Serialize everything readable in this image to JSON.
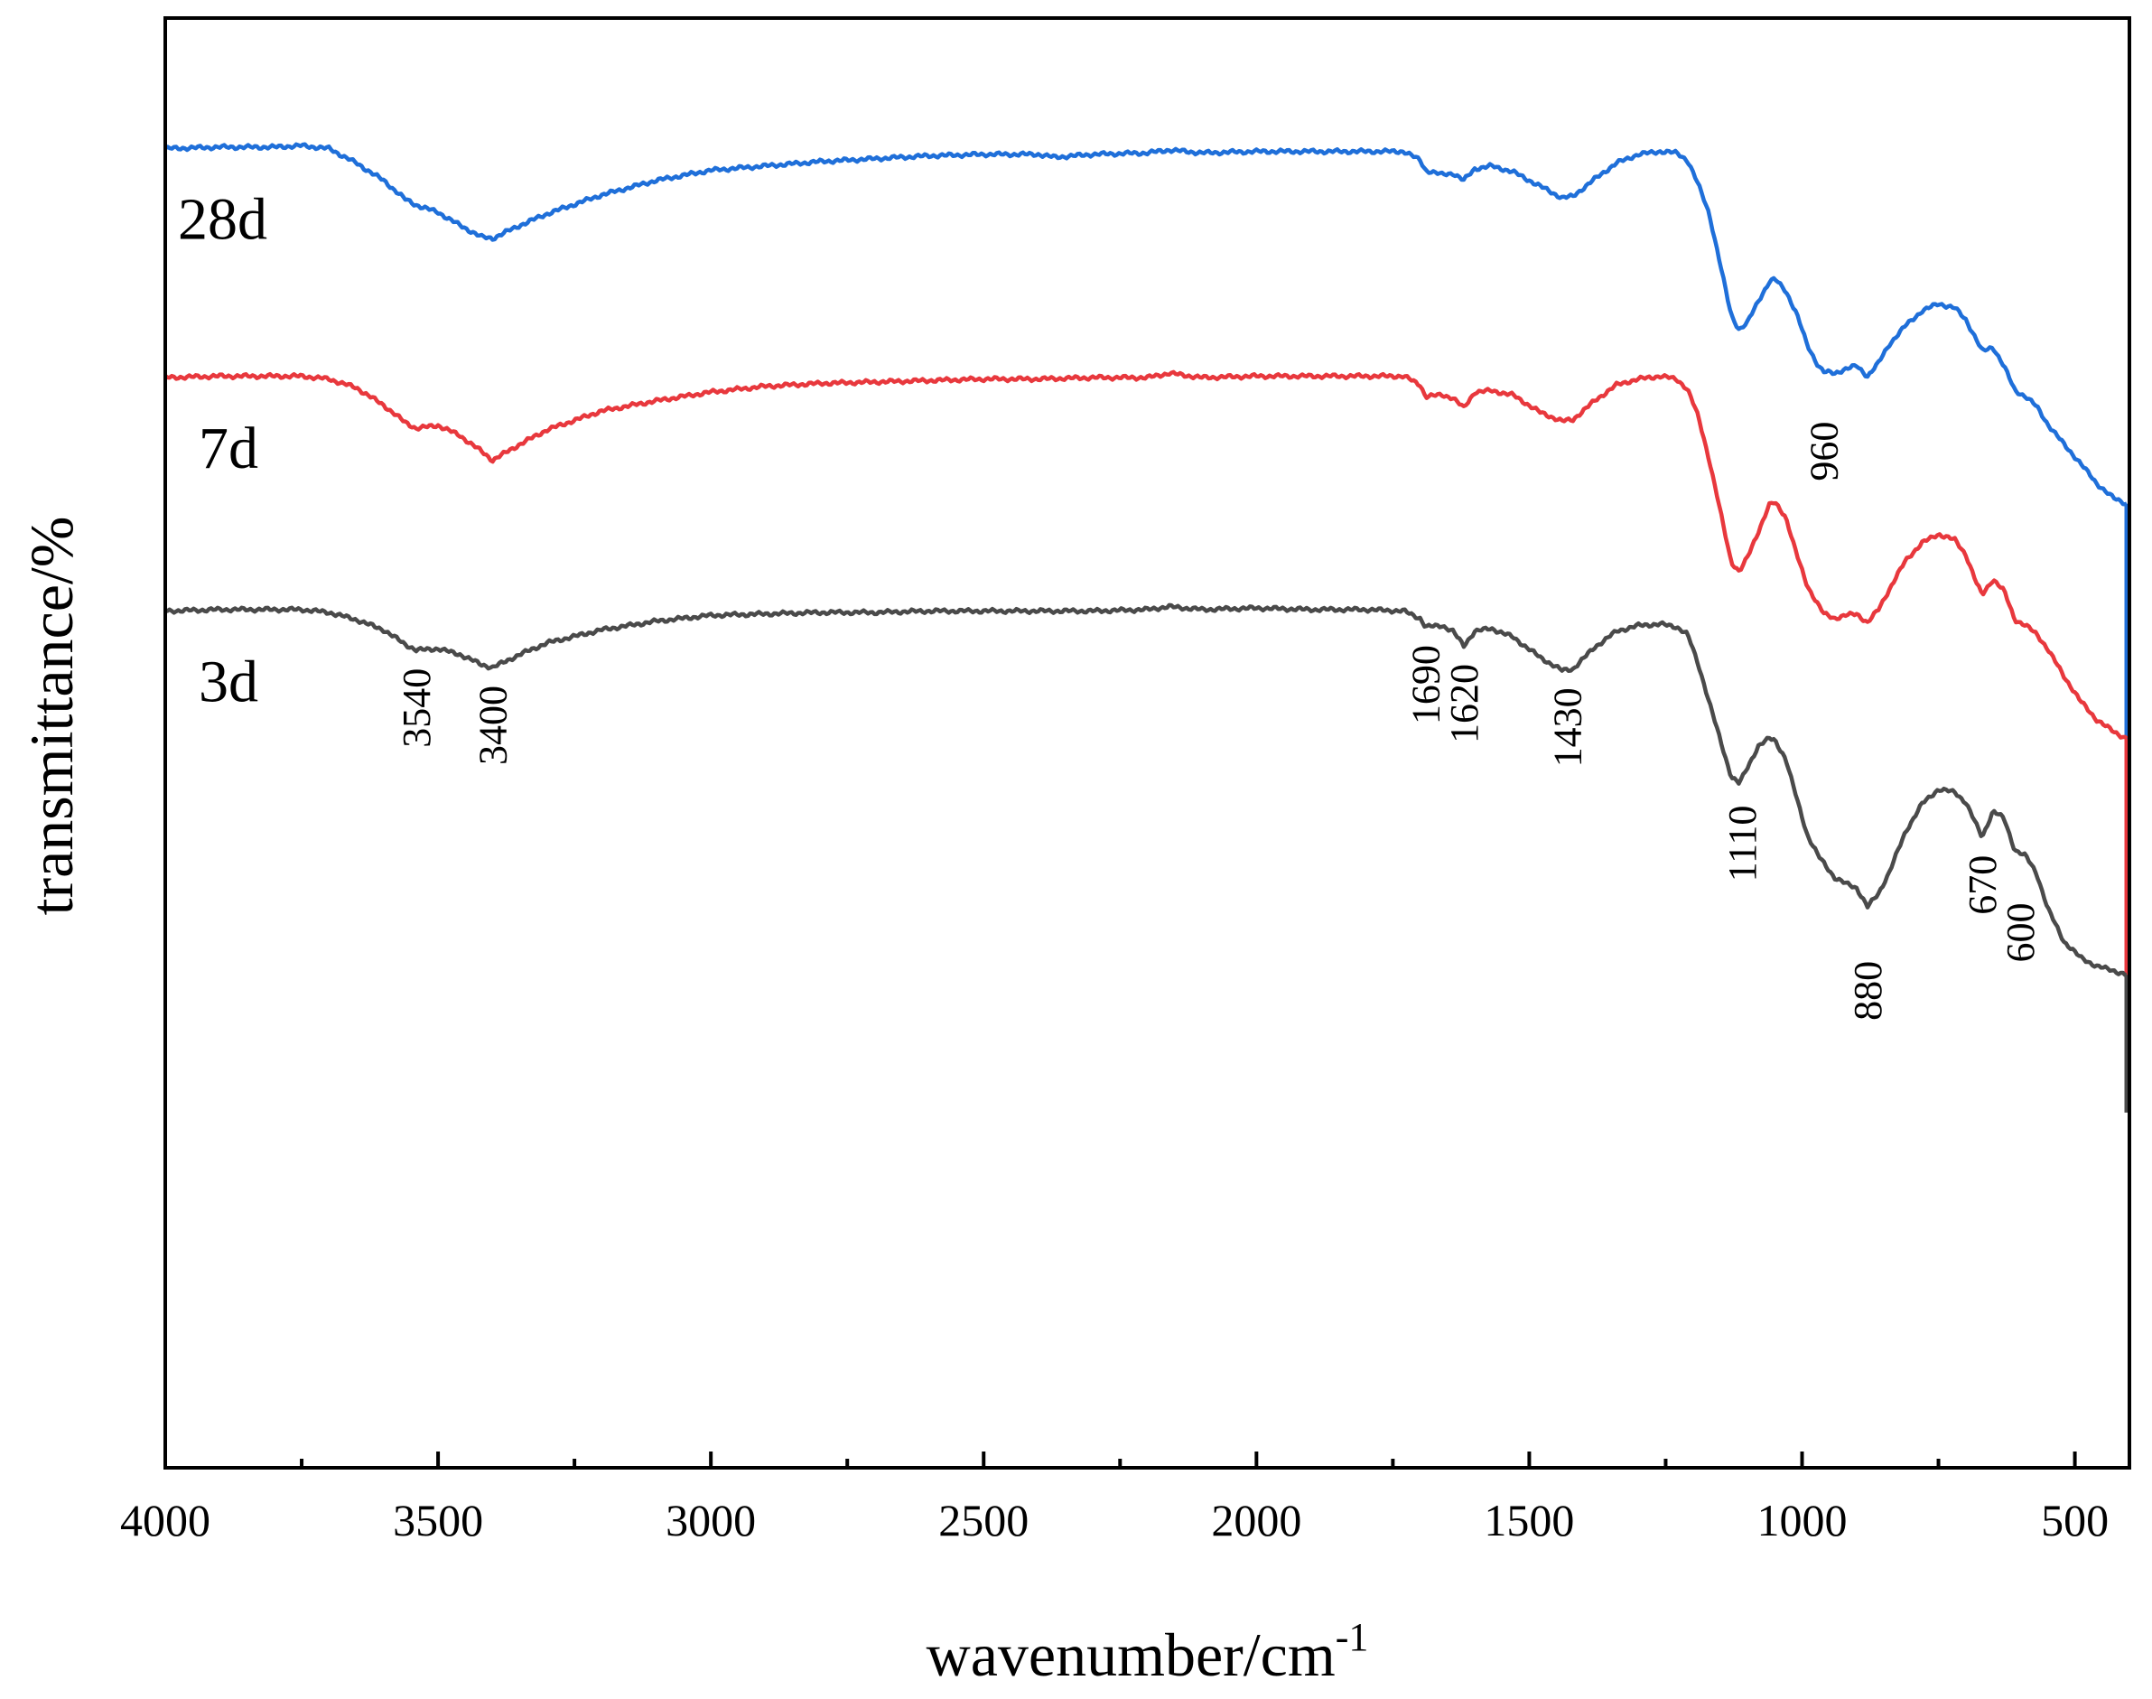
{
  "chart_data": {
    "type": "line",
    "title": "",
    "xlabel": "wavenumber/cm",
    "xlabel_superscript": "-1",
    "ylabel": "transmittance/%",
    "x_reversed": true,
    "xlim": [
      4000,
      400
    ],
    "ylim": [
      0,
      100
    ],
    "y_ticks_shown": false,
    "grid": false,
    "legend": "none",
    "x_ticks": [
      "4000",
      "3500",
      "3000",
      "2500",
      "2000",
      "1500",
      "1000",
      "500"
    ],
    "series": [
      {
        "name": "28d",
        "color": "#1f6fd9",
        "points": [
          [
            4000,
            91.0
          ],
          [
            3900,
            91.1
          ],
          [
            3800,
            91.1
          ],
          [
            3750,
            91.2
          ],
          [
            3700,
            91.0
          ],
          [
            3650,
            90.0
          ],
          [
            3600,
            88.8
          ],
          [
            3560,
            87.5
          ],
          [
            3540,
            87.1
          ],
          [
            3500,
            86.6
          ],
          [
            3460,
            85.7
          ],
          [
            3420,
            84.9
          ],
          [
            3400,
            84.8
          ],
          [
            3350,
            85.7
          ],
          [
            3300,
            86.5
          ],
          [
            3200,
            87.8
          ],
          [
            3100,
            88.8
          ],
          [
            3000,
            89.5
          ],
          [
            2900,
            89.8
          ],
          [
            2800,
            90.1
          ],
          [
            2700,
            90.3
          ],
          [
            2600,
            90.5
          ],
          [
            2500,
            90.6
          ],
          [
            2400,
            90.6
          ],
          [
            2370,
            90.4
          ],
          [
            2300,
            90.6
          ],
          [
            2200,
            90.7
          ],
          [
            2160,
            90.9
          ],
          [
            2100,
            90.7
          ],
          [
            2000,
            90.8
          ],
          [
            1900,
            90.8
          ],
          [
            1800,
            90.8
          ],
          [
            1730,
            90.8
          ],
          [
            1700,
            90.2
          ],
          [
            1690,
            89.5
          ],
          [
            1660,
            89.2
          ],
          [
            1640,
            89.3
          ],
          [
            1620,
            88.8
          ],
          [
            1600,
            89.6
          ],
          [
            1570,
            89.8
          ],
          [
            1530,
            89.4
          ],
          [
            1480,
            88.4
          ],
          [
            1440,
            87.6
          ],
          [
            1420,
            87.7
          ],
          [
            1380,
            88.9
          ],
          [
            1340,
            90.0
          ],
          [
            1300,
            90.6
          ],
          [
            1260,
            90.8
          ],
          [
            1230,
            90.7
          ],
          [
            1210,
            90.2
          ],
          [
            1190,
            88.5
          ],
          [
            1170,
            86.5
          ],
          [
            1150,
            83.0
          ],
          [
            1130,
            79.5
          ],
          [
            1115,
            78.5
          ],
          [
            1100,
            79.0
          ],
          [
            1080,
            80.5
          ],
          [
            1060,
            81.8
          ],
          [
            1050,
            82.0
          ],
          [
            1030,
            81.2
          ],
          [
            1010,
            79.6
          ],
          [
            990,
            77.4
          ],
          [
            970,
            76.0
          ],
          [
            960,
            75.6
          ],
          [
            940,
            75.5
          ],
          [
            920,
            75.8
          ],
          [
            900,
            76.0
          ],
          [
            880,
            75.3
          ],
          [
            860,
            76.2
          ],
          [
            840,
            77.5
          ],
          [
            810,
            78.8
          ],
          [
            780,
            79.8
          ],
          [
            750,
            80.3
          ],
          [
            720,
            80.0
          ],
          [
            700,
            79.2
          ],
          [
            680,
            77.8
          ],
          [
            670,
            77.0
          ],
          [
            650,
            77.3
          ],
          [
            630,
            76.0
          ],
          [
            610,
            74.3
          ],
          [
            590,
            73.9
          ],
          [
            570,
            73.2
          ],
          [
            550,
            72.0
          ],
          [
            520,
            70.6
          ],
          [
            490,
            69.3
          ],
          [
            460,
            67.9
          ],
          [
            430,
            66.9
          ],
          [
            405,
            66.5
          ]
        ]
      },
      {
        "name": "7d",
        "color": "#e8383d",
        "points": [
          [
            4000,
            75.2
          ],
          [
            3900,
            75.3
          ],
          [
            3800,
            75.3
          ],
          [
            3750,
            75.3
          ],
          [
            3700,
            75.1
          ],
          [
            3650,
            74.5
          ],
          [
            3600,
            73.3
          ],
          [
            3560,
            72.1
          ],
          [
            3540,
            71.7
          ],
          [
            3500,
            71.9
          ],
          [
            3460,
            71.2
          ],
          [
            3420,
            70.1
          ],
          [
            3400,
            69.5
          ],
          [
            3350,
            70.6
          ],
          [
            3300,
            71.6
          ],
          [
            3200,
            72.9
          ],
          [
            3100,
            73.6
          ],
          [
            3000,
            74.2
          ],
          [
            2900,
            74.6
          ],
          [
            2800,
            74.8
          ],
          [
            2700,
            74.9
          ],
          [
            2600,
            75.0
          ],
          [
            2500,
            75.1
          ],
          [
            2400,
            75.1
          ],
          [
            2300,
            75.2
          ],
          [
            2200,
            75.2
          ],
          [
            2160,
            75.5
          ],
          [
            2100,
            75.2
          ],
          [
            2000,
            75.3
          ],
          [
            1900,
            75.3
          ],
          [
            1800,
            75.3
          ],
          [
            1730,
            75.3
          ],
          [
            1700,
            74.7
          ],
          [
            1690,
            73.9
          ],
          [
            1660,
            74.0
          ],
          [
            1640,
            73.8
          ],
          [
            1620,
            73.1
          ],
          [
            1600,
            74.2
          ],
          [
            1570,
            74.3
          ],
          [
            1530,
            74.0
          ],
          [
            1480,
            72.8
          ],
          [
            1440,
            72.2
          ],
          [
            1420,
            72.3
          ],
          [
            1380,
            73.6
          ],
          [
            1340,
            74.7
          ],
          [
            1300,
            75.1
          ],
          [
            1260,
            75.3
          ],
          [
            1230,
            75.1
          ],
          [
            1210,
            74.4
          ],
          [
            1190,
            72.5
          ],
          [
            1170,
            69.5
          ],
          [
            1150,
            66.0
          ],
          [
            1130,
            62.5
          ],
          [
            1115,
            61.8
          ],
          [
            1100,
            62.8
          ],
          [
            1080,
            64.6
          ],
          [
            1060,
            66.4
          ],
          [
            1050,
            66.6
          ],
          [
            1030,
            65.6
          ],
          [
            1010,
            63.0
          ],
          [
            990,
            60.8
          ],
          [
            970,
            59.5
          ],
          [
            960,
            58.9
          ],
          [
            940,
            58.6
          ],
          [
            920,
            58.8
          ],
          [
            900,
            58.9
          ],
          [
            880,
            58.3
          ],
          [
            860,
            59.2
          ],
          [
            840,
            60.6
          ],
          [
            810,
            62.6
          ],
          [
            780,
            63.8
          ],
          [
            750,
            64.4
          ],
          [
            720,
            64.0
          ],
          [
            700,
            63.0
          ],
          [
            680,
            61.0
          ],
          [
            670,
            60.2
          ],
          [
            650,
            61.3
          ],
          [
            630,
            60.5
          ],
          [
            610,
            58.5
          ],
          [
            590,
            58.1
          ],
          [
            570,
            57.5
          ],
          [
            550,
            56.5
          ],
          [
            520,
            54.6
          ],
          [
            490,
            52.9
          ],
          [
            460,
            51.6
          ],
          [
            430,
            50.8
          ],
          [
            405,
            50.3
          ]
        ]
      },
      {
        "name": "3d",
        "color": "#4a4a4a",
        "points": [
          [
            4000,
            59.1
          ],
          [
            3900,
            59.2
          ],
          [
            3800,
            59.2
          ],
          [
            3750,
            59.2
          ],
          [
            3700,
            59.0
          ],
          [
            3650,
            58.5
          ],
          [
            3600,
            57.8
          ],
          [
            3560,
            56.8
          ],
          [
            3540,
            56.4
          ],
          [
            3500,
            56.5
          ],
          [
            3460,
            56.1
          ],
          [
            3420,
            55.4
          ],
          [
            3400,
            55.2
          ],
          [
            3350,
            56.1
          ],
          [
            3300,
            56.9
          ],
          [
            3200,
            57.8
          ],
          [
            3100,
            58.4
          ],
          [
            3000,
            58.8
          ],
          [
            2900,
            58.9
          ],
          [
            2800,
            59.0
          ],
          [
            2700,
            59.0
          ],
          [
            2600,
            59.1
          ],
          [
            2500,
            59.1
          ],
          [
            2400,
            59.1
          ],
          [
            2300,
            59.1
          ],
          [
            2200,
            59.2
          ],
          [
            2160,
            59.4
          ],
          [
            2100,
            59.2
          ],
          [
            2000,
            59.3
          ],
          [
            1900,
            59.2
          ],
          [
            1800,
            59.2
          ],
          [
            1730,
            59.1
          ],
          [
            1700,
            58.6
          ],
          [
            1690,
            58.0
          ],
          [
            1660,
            58.1
          ],
          [
            1640,
            57.7
          ],
          [
            1620,
            56.7
          ],
          [
            1600,
            57.7
          ],
          [
            1570,
            57.9
          ],
          [
            1530,
            57.3
          ],
          [
            1480,
            55.9
          ],
          [
            1440,
            55.0
          ],
          [
            1420,
            55.1
          ],
          [
            1380,
            56.6
          ],
          [
            1340,
            57.7
          ],
          [
            1300,
            58.1
          ],
          [
            1260,
            58.2
          ],
          [
            1230,
            58.0
          ],
          [
            1210,
            57.5
          ],
          [
            1190,
            55.4
          ],
          [
            1170,
            52.8
          ],
          [
            1150,
            50.2
          ],
          [
            1130,
            47.7
          ],
          [
            1115,
            47.2
          ],
          [
            1100,
            48.3
          ],
          [
            1080,
            49.8
          ],
          [
            1060,
            50.3
          ],
          [
            1050,
            50.2
          ],
          [
            1030,
            48.9
          ],
          [
            1010,
            46.2
          ],
          [
            990,
            43.6
          ],
          [
            970,
            42.2
          ],
          [
            960,
            41.7
          ],
          [
            940,
            40.7
          ],
          [
            920,
            40.3
          ],
          [
            900,
            40.0
          ],
          [
            880,
            38.7
          ],
          [
            860,
            39.6
          ],
          [
            840,
            41.1
          ],
          [
            810,
            43.9
          ],
          [
            780,
            45.8
          ],
          [
            750,
            46.8
          ],
          [
            720,
            46.6
          ],
          [
            700,
            45.9
          ],
          [
            680,
            44.3
          ],
          [
            670,
            43.5
          ],
          [
            650,
            45.3
          ],
          [
            630,
            44.8
          ],
          [
            610,
            42.6
          ],
          [
            590,
            42.2
          ],
          [
            570,
            41.0
          ],
          [
            550,
            38.6
          ],
          [
            520,
            36.3
          ],
          [
            490,
            35.2
          ],
          [
            460,
            34.6
          ],
          [
            430,
            34.3
          ],
          [
            405,
            34.0
          ]
        ]
      }
    ],
    "annotations": [
      {
        "text": "3540",
        "x": 3540,
        "series": "3d"
      },
      {
        "text": "3400",
        "x": 3400,
        "series": "3d"
      },
      {
        "text": "1690",
        "x": 1690,
        "series": "3d"
      },
      {
        "text": "1620",
        "x": 1620,
        "series": "3d"
      },
      {
        "text": "1430",
        "x": 1430,
        "series": "3d"
      },
      {
        "text": "1110",
        "x": 1110,
        "series": "3d"
      },
      {
        "text": "880",
        "x": 880,
        "series": "3d"
      },
      {
        "text": "670",
        "x": 670,
        "series": "3d"
      },
      {
        "text": "600",
        "x": 600,
        "series": "3d"
      },
      {
        "text": "960",
        "x": 960,
        "series": "28d"
      }
    ]
  }
}
